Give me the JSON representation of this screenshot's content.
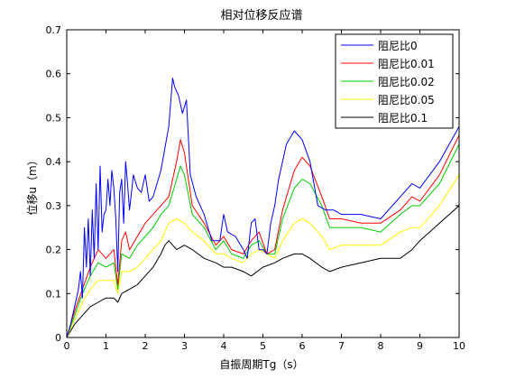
{
  "chart_data": {
    "type": "line",
    "title": "相对位移反应谱",
    "xlabel": "自振周期Tg（s）",
    "ylabel": "位移u（m）",
    "xlim": [
      0,
      10
    ],
    "ylim": [
      0,
      0.7
    ],
    "xticks": [
      "0",
      "1",
      "2",
      "3",
      "4",
      "5",
      "6",
      "7",
      "8",
      "9",
      "10"
    ],
    "yticks": [
      "0",
      "0.1",
      "0.2",
      "0.3",
      "0.4",
      "0.5",
      "0.6",
      "0.7"
    ],
    "grid": false,
    "legend_position": "top-right",
    "series": [
      {
        "name": "阻尼比0",
        "color": "#0000ff",
        "x": [
          0,
          0.1,
          0.2,
          0.3,
          0.35,
          0.4,
          0.45,
          0.5,
          0.55,
          0.6,
          0.65,
          0.7,
          0.75,
          0.8,
          0.85,
          0.9,
          0.95,
          1.0,
          1.05,
          1.1,
          1.15,
          1.2,
          1.25,
          1.3,
          1.35,
          1.4,
          1.45,
          1.5,
          1.55,
          1.6,
          1.7,
          1.8,
          1.9,
          2.0,
          2.1,
          2.2,
          2.4,
          2.6,
          2.7,
          2.75,
          2.85,
          2.95,
          3.05,
          3.15,
          3.3,
          3.5,
          3.7,
          3.9,
          4.0,
          4.1,
          4.3,
          4.5,
          4.6,
          4.7,
          4.8,
          4.9,
          5.0,
          5.1,
          5.2,
          5.3,
          5.4,
          5.6,
          5.8,
          6.0,
          6.2,
          6.4,
          6.6,
          6.8,
          7.0,
          7.5,
          8.0,
          8.5,
          8.8,
          9.0,
          9.5,
          10.0
        ],
        "values": [
          0.0,
          0.03,
          0.07,
          0.11,
          0.15,
          0.09,
          0.25,
          0.16,
          0.27,
          0.14,
          0.29,
          0.18,
          0.35,
          0.2,
          0.39,
          0.24,
          0.28,
          0.29,
          0.36,
          0.3,
          0.38,
          0.34,
          0.27,
          0.15,
          0.33,
          0.36,
          0.26,
          0.4,
          0.35,
          0.29,
          0.37,
          0.34,
          0.33,
          0.37,
          0.31,
          0.32,
          0.38,
          0.48,
          0.59,
          0.57,
          0.55,
          0.51,
          0.54,
          0.37,
          0.32,
          0.28,
          0.22,
          0.22,
          0.28,
          0.24,
          0.23,
          0.2,
          0.18,
          0.26,
          0.27,
          0.2,
          0.2,
          0.19,
          0.26,
          0.3,
          0.36,
          0.44,
          0.47,
          0.45,
          0.4,
          0.3,
          0.29,
          0.29,
          0.28,
          0.28,
          0.27,
          0.32,
          0.35,
          0.34,
          0.4,
          0.48
        ]
      },
      {
        "name": "阻尼比0.01",
        "color": "#ff0000",
        "x": [
          0,
          0.2,
          0.4,
          0.6,
          0.8,
          1.0,
          1.2,
          1.3,
          1.4,
          1.5,
          1.6,
          1.8,
          2.0,
          2.2,
          2.4,
          2.6,
          2.8,
          2.9,
          3.0,
          3.2,
          3.5,
          3.8,
          4.0,
          4.2,
          4.5,
          4.7,
          4.9,
          5.1,
          5.3,
          5.5,
          5.8,
          6.0,
          6.2,
          6.5,
          6.7,
          7.0,
          7.5,
          8.0,
          8.5,
          8.8,
          9.0,
          9.5,
          10.0
        ],
        "values": [
          0.0,
          0.06,
          0.11,
          0.16,
          0.2,
          0.18,
          0.2,
          0.12,
          0.22,
          0.24,
          0.2,
          0.23,
          0.26,
          0.28,
          0.3,
          0.32,
          0.4,
          0.45,
          0.42,
          0.3,
          0.26,
          0.21,
          0.23,
          0.2,
          0.19,
          0.22,
          0.24,
          0.19,
          0.2,
          0.29,
          0.38,
          0.41,
          0.39,
          0.32,
          0.27,
          0.27,
          0.26,
          0.26,
          0.29,
          0.32,
          0.31,
          0.37,
          0.46
        ]
      },
      {
        "name": "阻尼比0.02",
        "color": "#00cc00",
        "x": [
          0,
          0.2,
          0.4,
          0.6,
          0.8,
          1.0,
          1.2,
          1.3,
          1.4,
          1.6,
          1.8,
          2.0,
          2.2,
          2.4,
          2.6,
          2.8,
          2.9,
          3.0,
          3.2,
          3.5,
          3.8,
          4.0,
          4.2,
          4.5,
          4.7,
          4.9,
          5.1,
          5.3,
          5.5,
          5.8,
          6.0,
          6.2,
          6.5,
          6.7,
          7.0,
          7.5,
          8.0,
          8.5,
          8.8,
          9.0,
          9.5,
          10.0
        ],
        "values": [
          0.0,
          0.05,
          0.1,
          0.14,
          0.17,
          0.16,
          0.17,
          0.11,
          0.19,
          0.18,
          0.21,
          0.23,
          0.25,
          0.28,
          0.3,
          0.36,
          0.39,
          0.37,
          0.28,
          0.25,
          0.2,
          0.22,
          0.19,
          0.18,
          0.21,
          0.22,
          0.19,
          0.19,
          0.27,
          0.34,
          0.36,
          0.35,
          0.3,
          0.25,
          0.25,
          0.25,
          0.24,
          0.28,
          0.3,
          0.3,
          0.35,
          0.44
        ]
      },
      {
        "name": "阻尼比0.05",
        "color": "#ffff00",
        "x": [
          0,
          0.2,
          0.4,
          0.6,
          0.8,
          1.0,
          1.2,
          1.3,
          1.4,
          1.6,
          1.8,
          2.0,
          2.2,
          2.4,
          2.6,
          2.8,
          3.0,
          3.2,
          3.5,
          3.8,
          4.0,
          4.2,
          4.5,
          4.7,
          4.9,
          5.1,
          5.3,
          5.5,
          5.8,
          6.0,
          6.2,
          6.5,
          6.7,
          7.0,
          7.5,
          8.0,
          8.5,
          8.8,
          9.0,
          9.5,
          10.0
        ],
        "values": [
          0.0,
          0.04,
          0.08,
          0.11,
          0.13,
          0.13,
          0.13,
          0.1,
          0.15,
          0.15,
          0.16,
          0.18,
          0.2,
          0.22,
          0.26,
          0.27,
          0.26,
          0.24,
          0.22,
          0.19,
          0.19,
          0.18,
          0.17,
          0.19,
          0.2,
          0.19,
          0.18,
          0.22,
          0.26,
          0.27,
          0.26,
          0.23,
          0.2,
          0.21,
          0.21,
          0.21,
          0.24,
          0.25,
          0.25,
          0.3,
          0.37
        ]
      },
      {
        "name": "阻尼比0.1",
        "color": "#000000",
        "x": [
          0,
          0.2,
          0.4,
          0.6,
          0.8,
          1.0,
          1.2,
          1.3,
          1.4,
          1.6,
          1.8,
          2.0,
          2.2,
          2.4,
          2.5,
          2.6,
          2.8,
          3.0,
          3.2,
          3.5,
          3.8,
          4.0,
          4.2,
          4.5,
          4.7,
          5.0,
          5.3,
          5.5,
          5.8,
          6.0,
          6.2,
          6.5,
          6.7,
          7.0,
          7.5,
          8.0,
          8.5,
          8.8,
          9.0,
          9.5,
          10.0
        ],
        "values": [
          0.0,
          0.03,
          0.05,
          0.07,
          0.08,
          0.09,
          0.09,
          0.08,
          0.1,
          0.11,
          0.12,
          0.14,
          0.16,
          0.19,
          0.21,
          0.22,
          0.2,
          0.21,
          0.2,
          0.18,
          0.17,
          0.16,
          0.16,
          0.15,
          0.14,
          0.16,
          0.17,
          0.18,
          0.19,
          0.19,
          0.18,
          0.16,
          0.15,
          0.16,
          0.17,
          0.18,
          0.18,
          0.2,
          0.22,
          0.26,
          0.3
        ]
      }
    ]
  }
}
